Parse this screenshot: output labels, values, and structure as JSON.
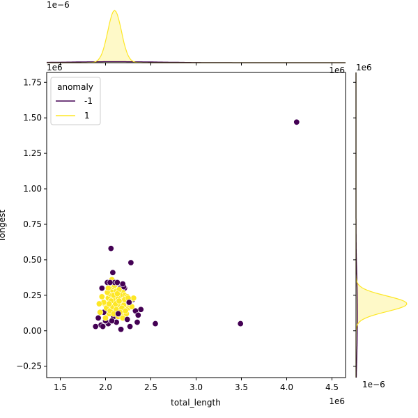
{
  "chart_data": {
    "type": "scatter",
    "subtype": "jointplot",
    "xlabel": "total_length",
    "ylabel": "longest",
    "x_offset_text": "1e6",
    "y_offset_text": "1e6",
    "top_marginal_offset_text": "1e−6",
    "right_marginal_offset_text": "1e−6",
    "xlim": [
      1.35,
      4.65
    ],
    "ylim": [
      -0.33,
      1.82
    ],
    "xticks": [
      1.5,
      2.0,
      2.5,
      3.0,
      3.5,
      4.0,
      4.5
    ],
    "xtick_labels": [
      "1.5",
      "2.0",
      "2.5",
      "3.0",
      "3.5",
      "4.0",
      "4.5"
    ],
    "yticks": [
      -0.25,
      0.0,
      0.25,
      0.5,
      0.75,
      1.0,
      1.25,
      1.5,
      1.75
    ],
    "ytick_labels": [
      "−0.25",
      "0.00",
      "0.25",
      "0.50",
      "0.75",
      "1.00",
      "1.25",
      "1.50",
      "1.75"
    ],
    "legend": {
      "title": "anomaly",
      "placement": "upper-left",
      "entries": [
        {
          "label": "-1",
          "color": "#440154"
        },
        {
          "label": "1",
          "color": "#fde725"
        }
      ]
    },
    "series": [
      {
        "name": "-1",
        "color": "#440154",
        "x": [
          4.11,
          3.49,
          2.55,
          2.06,
          2.28,
          2.08,
          1.89,
          1.96,
          2.17,
          2.35,
          1.97,
          2.03,
          2.1,
          2.21,
          2.36,
          2.39,
          1.92,
          2.0,
          2.26,
          2.02,
          2.05,
          2.09,
          2.13,
          2.16,
          2.19,
          2.3,
          2.24,
          1.95,
          2.12,
          2.33,
          2.07,
          2.2,
          2.14,
          1.98,
          2.27
        ],
        "y": [
          1.47,
          0.05,
          0.05,
          0.58,
          0.48,
          0.41,
          0.03,
          0.3,
          0.01,
          0.06,
          0.03,
          0.05,
          0.34,
          0.3,
          0.11,
          0.15,
          0.09,
          0.07,
          0.2,
          0.34,
          0.34,
          0.1,
          0.34,
          0.3,
          0.33,
          0.22,
          0.08,
          0.04,
          0.06,
          0.14,
          0.07,
          0.31,
          0.12,
          0.13,
          0.03
        ]
      },
      {
        "name": "1",
        "color": "#fde725",
        "x": [
          1.94,
          1.99,
          2.03,
          2.05,
          2.07,
          2.09,
          2.11,
          2.13,
          2.15,
          2.17,
          2.19,
          2.21,
          2.23,
          2.25,
          2.28,
          2.31,
          1.96,
          2.01,
          2.04,
          2.06,
          2.08,
          2.1,
          2.12,
          2.14,
          2.16,
          2.18,
          2.2,
          2.22,
          2.24,
          2.27,
          1.98,
          2.02,
          2.05,
          2.08,
          2.11,
          2.14,
          2.17,
          2.2,
          2.23,
          2.26,
          2.0,
          2.06,
          2.09,
          2.12,
          2.15,
          2.18,
          2.21,
          2.04,
          2.1,
          2.16,
          2.07,
          2.13,
          2.19,
          2.25,
          2.29,
          1.93,
          2.03,
          2.09,
          2.15,
          2.22
        ],
        "y": [
          0.13,
          0.19,
          0.23,
          0.26,
          0.29,
          0.31,
          0.24,
          0.2,
          0.17,
          0.21,
          0.27,
          0.25,
          0.19,
          0.16,
          0.22,
          0.23,
          0.24,
          0.16,
          0.12,
          0.18,
          0.22,
          0.14,
          0.28,
          0.1,
          0.25,
          0.13,
          0.15,
          0.2,
          0.24,
          0.18,
          0.2,
          0.27,
          0.14,
          0.17,
          0.19,
          0.23,
          0.11,
          0.18,
          0.12,
          0.2,
          0.09,
          0.21,
          0.25,
          0.15,
          0.29,
          0.16,
          0.22,
          0.19,
          0.32,
          0.13,
          0.36,
          0.26,
          0.09,
          0.23,
          0.17,
          0.19,
          0.3,
          0.12,
          0.21,
          0.14
        ]
      }
    ],
    "marginal_x_density": {
      "series": [
        {
          "name": "-1",
          "color": "#440154",
          "center": 2.1,
          "spread": 0.5,
          "relative_peak": 0.02
        },
        {
          "name": "1",
          "color": "#fde725",
          "center": 2.1,
          "spread": 0.075,
          "relative_peak": 1.0
        }
      ]
    },
    "marginal_y_density": {
      "series": [
        {
          "name": "-1",
          "color": "#440154",
          "center": 0.1,
          "spread": 0.25,
          "relative_peak": 0.03
        },
        {
          "name": "1",
          "color": "#fde725",
          "center": 0.19,
          "spread": 0.055,
          "relative_peak": 1.0
        }
      ]
    }
  }
}
